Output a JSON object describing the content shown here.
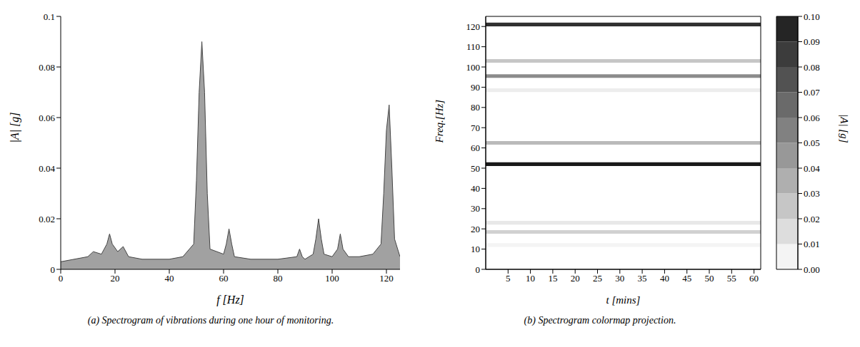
{
  "chart_data": [
    {
      "type": "area",
      "caption": "(a) Spectrogram of vibrations during one hour of monitoring.",
      "x_label": "f [Hz]",
      "y_label": "|A| [g]",
      "x": [
        0,
        5,
        10,
        12,
        15,
        17,
        18,
        19,
        21,
        23,
        25,
        30,
        40,
        45,
        49,
        50,
        51,
        52,
        53,
        54,
        55,
        60,
        61,
        62,
        63,
        64,
        70,
        80,
        87,
        88,
        89,
        90,
        93,
        94,
        95,
        96,
        97,
        100,
        102,
        103,
        104,
        106,
        110,
        115,
        118,
        119,
        120,
        121,
        122,
        123,
        125
      ],
      "values": [
        0.003,
        0.004,
        0.005,
        0.007,
        0.006,
        0.01,
        0.014,
        0.01,
        0.007,
        0.009,
        0.005,
        0.004,
        0.004,
        0.005,
        0.01,
        0.035,
        0.07,
        0.09,
        0.07,
        0.03,
        0.008,
        0.006,
        0.01,
        0.016,
        0.01,
        0.005,
        0.004,
        0.004,
        0.005,
        0.008,
        0.005,
        0.004,
        0.006,
        0.012,
        0.02,
        0.012,
        0.006,
        0.005,
        0.008,
        0.014,
        0.008,
        0.005,
        0.005,
        0.006,
        0.01,
        0.03,
        0.055,
        0.065,
        0.04,
        0.012,
        0.005
      ],
      "color": "#8a8a8a",
      "xlim": [
        0,
        125
      ],
      "xticks": [
        0,
        20,
        40,
        60,
        80,
        100,
        120
      ],
      "ylim": [
        0,
        0.1
      ],
      "yticks": [
        0,
        0.02,
        0.04,
        0.06,
        0.08,
        0.1
      ]
    },
    {
      "type": "heatmap",
      "caption": "(b) Spectrogram colormap projection.",
      "x_label": "t [mins]",
      "y_label": "Freq.[Hz]",
      "bands": [
        {
          "frequency": 121,
          "amplitude": 0.09
        },
        {
          "frequency": 103,
          "amplitude": 0.025
        },
        {
          "frequency": 95.5,
          "amplitude": 0.05
        },
        {
          "frequency": 88.5,
          "amplitude": 0.008
        },
        {
          "frequency": 62.5,
          "amplitude": 0.03
        },
        {
          "frequency": 52,
          "amplitude": 0.1
        },
        {
          "frequency": 23,
          "amplitude": 0.01
        },
        {
          "frequency": 18.5,
          "amplitude": 0.02
        },
        {
          "frequency": 12,
          "amplitude": 0.005
        }
      ],
      "xlim": [
        0,
        61.5
      ],
      "xticks": [
        5,
        10,
        15,
        20,
        25,
        30,
        35,
        40,
        45,
        50,
        55,
        60
      ],
      "ylim": [
        0,
        125
      ],
      "yticks": [
        0,
        10,
        20,
        30,
        40,
        50,
        60,
        70,
        80,
        90,
        100,
        110,
        120
      ],
      "colorbar": {
        "label": "|A| [g]",
        "range": [
          0,
          0.1
        ],
        "ticks": [
          {
            "value": 0,
            "label": "0.00"
          },
          {
            "value": 0.01,
            "label": "0.01"
          },
          {
            "value": 0.02,
            "label": "0.02"
          },
          {
            "value": 0.03,
            "label": "0.03"
          },
          {
            "value": 0.04,
            "label": "0.04"
          },
          {
            "value": 0.05,
            "label": "0.05"
          },
          {
            "value": 0.06,
            "label": "0.06"
          },
          {
            "value": 0.07,
            "label": "0.07"
          },
          {
            "value": 0.08,
            "label": "0.08"
          },
          {
            "value": 0.09,
            "label": "0.09"
          },
          {
            "value": 0.1,
            "label": "0.10"
          }
        ]
      }
    }
  ]
}
